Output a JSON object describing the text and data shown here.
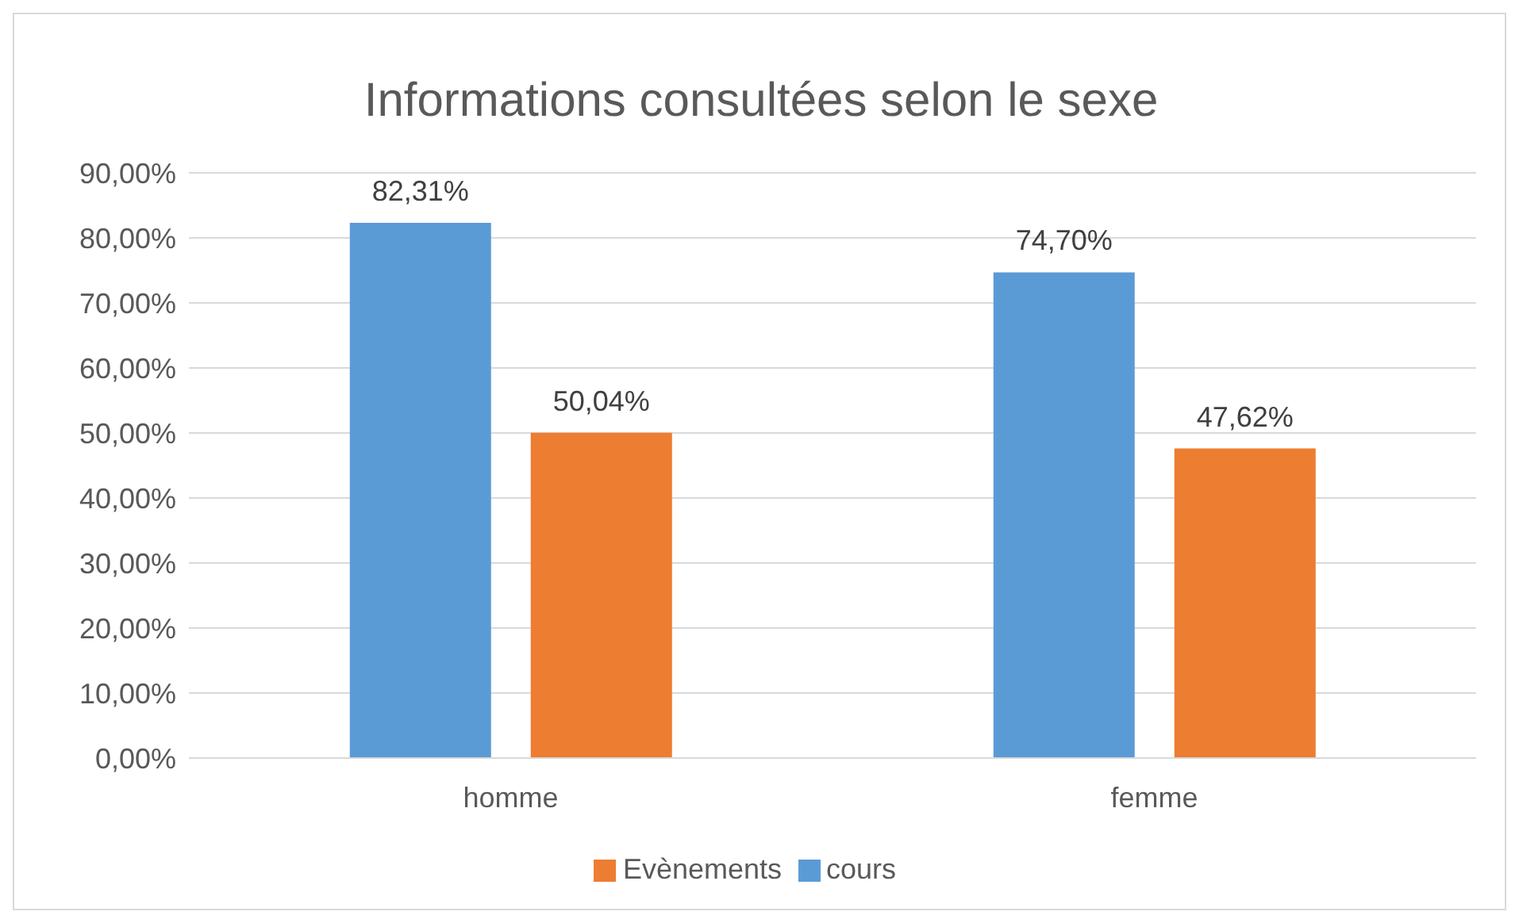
{
  "chart_data": {
    "type": "bar",
    "title": "Informations consultées selon le sexe",
    "categories": [
      "homme",
      "femme"
    ],
    "series": [
      {
        "name": "cours",
        "color": "#5b9bd5",
        "values": [
          82.31,
          74.7
        ],
        "value_labels": [
          "82,31%",
          "74,70%"
        ]
      },
      {
        "name": "Evènements",
        "color": "#ed7d31",
        "values": [
          50.04,
          47.62
        ],
        "value_labels": [
          "50,04%",
          "47,62%"
        ]
      }
    ],
    "ylim": [
      0,
      90
    ],
    "yticks": [
      {
        "value": 0,
        "label": "0,00%"
      },
      {
        "value": 10,
        "label": "10,00%"
      },
      {
        "value": 20,
        "label": "20,00%"
      },
      {
        "value": 30,
        "label": "30,00%"
      },
      {
        "value": 40,
        "label": "40,00%"
      },
      {
        "value": 50,
        "label": "50,00%"
      },
      {
        "value": 60,
        "label": "60,00%"
      },
      {
        "value": 70,
        "label": "70,00%"
      },
      {
        "value": 80,
        "label": "80,00%"
      },
      {
        "value": 90,
        "label": "90,00%"
      }
    ],
    "grid": "y",
    "legend": "bottom"
  }
}
